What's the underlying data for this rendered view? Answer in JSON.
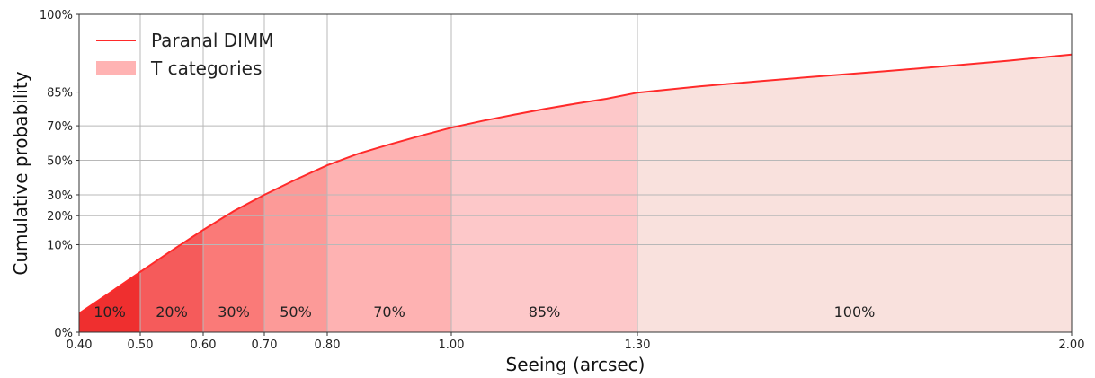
{
  "chart_data": {
    "type": "area",
    "xlabel": "Seeing (arcsec)",
    "ylabel": "Cumulative probability",
    "xlim": [
      0.4,
      2.0
    ],
    "ylim": [
      0,
      100
    ],
    "y_scale": "probability",
    "grid": true,
    "legend_position": "top-left",
    "x_ticks": [
      {
        "value": 0.4,
        "label": "0.40"
      },
      {
        "value": 0.5,
        "label": "0.50"
      },
      {
        "value": 0.6,
        "label": "0.60"
      },
      {
        "value": 0.7,
        "label": "0.70"
      },
      {
        "value": 0.8,
        "label": "0.80"
      },
      {
        "value": 1.0,
        "label": "1.00"
      },
      {
        "value": 1.3,
        "label": "1.30"
      },
      {
        "value": 2.0,
        "label": "2.00"
      }
    ],
    "y_ticks": [
      {
        "value": 0,
        "label": "0%"
      },
      {
        "value": 10,
        "label": "10%"
      },
      {
        "value": 20,
        "label": "20%"
      },
      {
        "value": 30,
        "label": "30%"
      },
      {
        "value": 50,
        "label": "50%"
      },
      {
        "value": 70,
        "label": "70%"
      },
      {
        "value": 85,
        "label": "85%"
      },
      {
        "value": 100,
        "label": "100%"
      }
    ],
    "series": [
      {
        "name": "Paranal DIMM",
        "color": "#ff2a2a",
        "points": [
          [
            0.4,
            1.0
          ],
          [
            0.45,
            2.2
          ],
          [
            0.5,
            4.5
          ],
          [
            0.55,
            8.5
          ],
          [
            0.6,
            14.5
          ],
          [
            0.65,
            22.0
          ],
          [
            0.7,
            30.0
          ],
          [
            0.75,
            38.5
          ],
          [
            0.8,
            47.0
          ],
          [
            0.85,
            54.0
          ],
          [
            0.9,
            59.5
          ],
          [
            0.95,
            64.5
          ],
          [
            1.0,
            69.0
          ],
          [
            1.05,
            72.5
          ],
          [
            1.1,
            75.5
          ],
          [
            1.15,
            78.2
          ],
          [
            1.2,
            80.5
          ],
          [
            1.25,
            82.5
          ],
          [
            1.3,
            84.8
          ],
          [
            1.4,
            86.9
          ],
          [
            1.5,
            88.6
          ],
          [
            1.6,
            90.0
          ],
          [
            1.7,
            91.2
          ],
          [
            1.8,
            92.4
          ],
          [
            1.9,
            93.5
          ],
          [
            2.0,
            94.6
          ]
        ]
      }
    ],
    "categories": {
      "name": "T categories",
      "legend_color": "#ffb3b3",
      "items": [
        {
          "label": "10%",
          "x0": 0.4,
          "x1": 0.5,
          "color": "#ef2f2f"
        },
        {
          "label": "20%",
          "x0": 0.5,
          "x1": 0.6,
          "color": "#f55b5b"
        },
        {
          "label": "30%",
          "x0": 0.6,
          "x1": 0.7,
          "color": "#fa7a78"
        },
        {
          "label": "50%",
          "x0": 0.7,
          "x1": 0.8,
          "color": "#fc9a98"
        },
        {
          "label": "70%",
          "x0": 0.8,
          "x1": 1.0,
          "color": "#feb2b2"
        },
        {
          "label": "85%",
          "x0": 1.0,
          "x1": 1.3,
          "color": "#fdc8c9"
        },
        {
          "label": "100%",
          "x0": 1.3,
          "x1": 2.0,
          "color": "#f9e1dd"
        }
      ]
    }
  }
}
